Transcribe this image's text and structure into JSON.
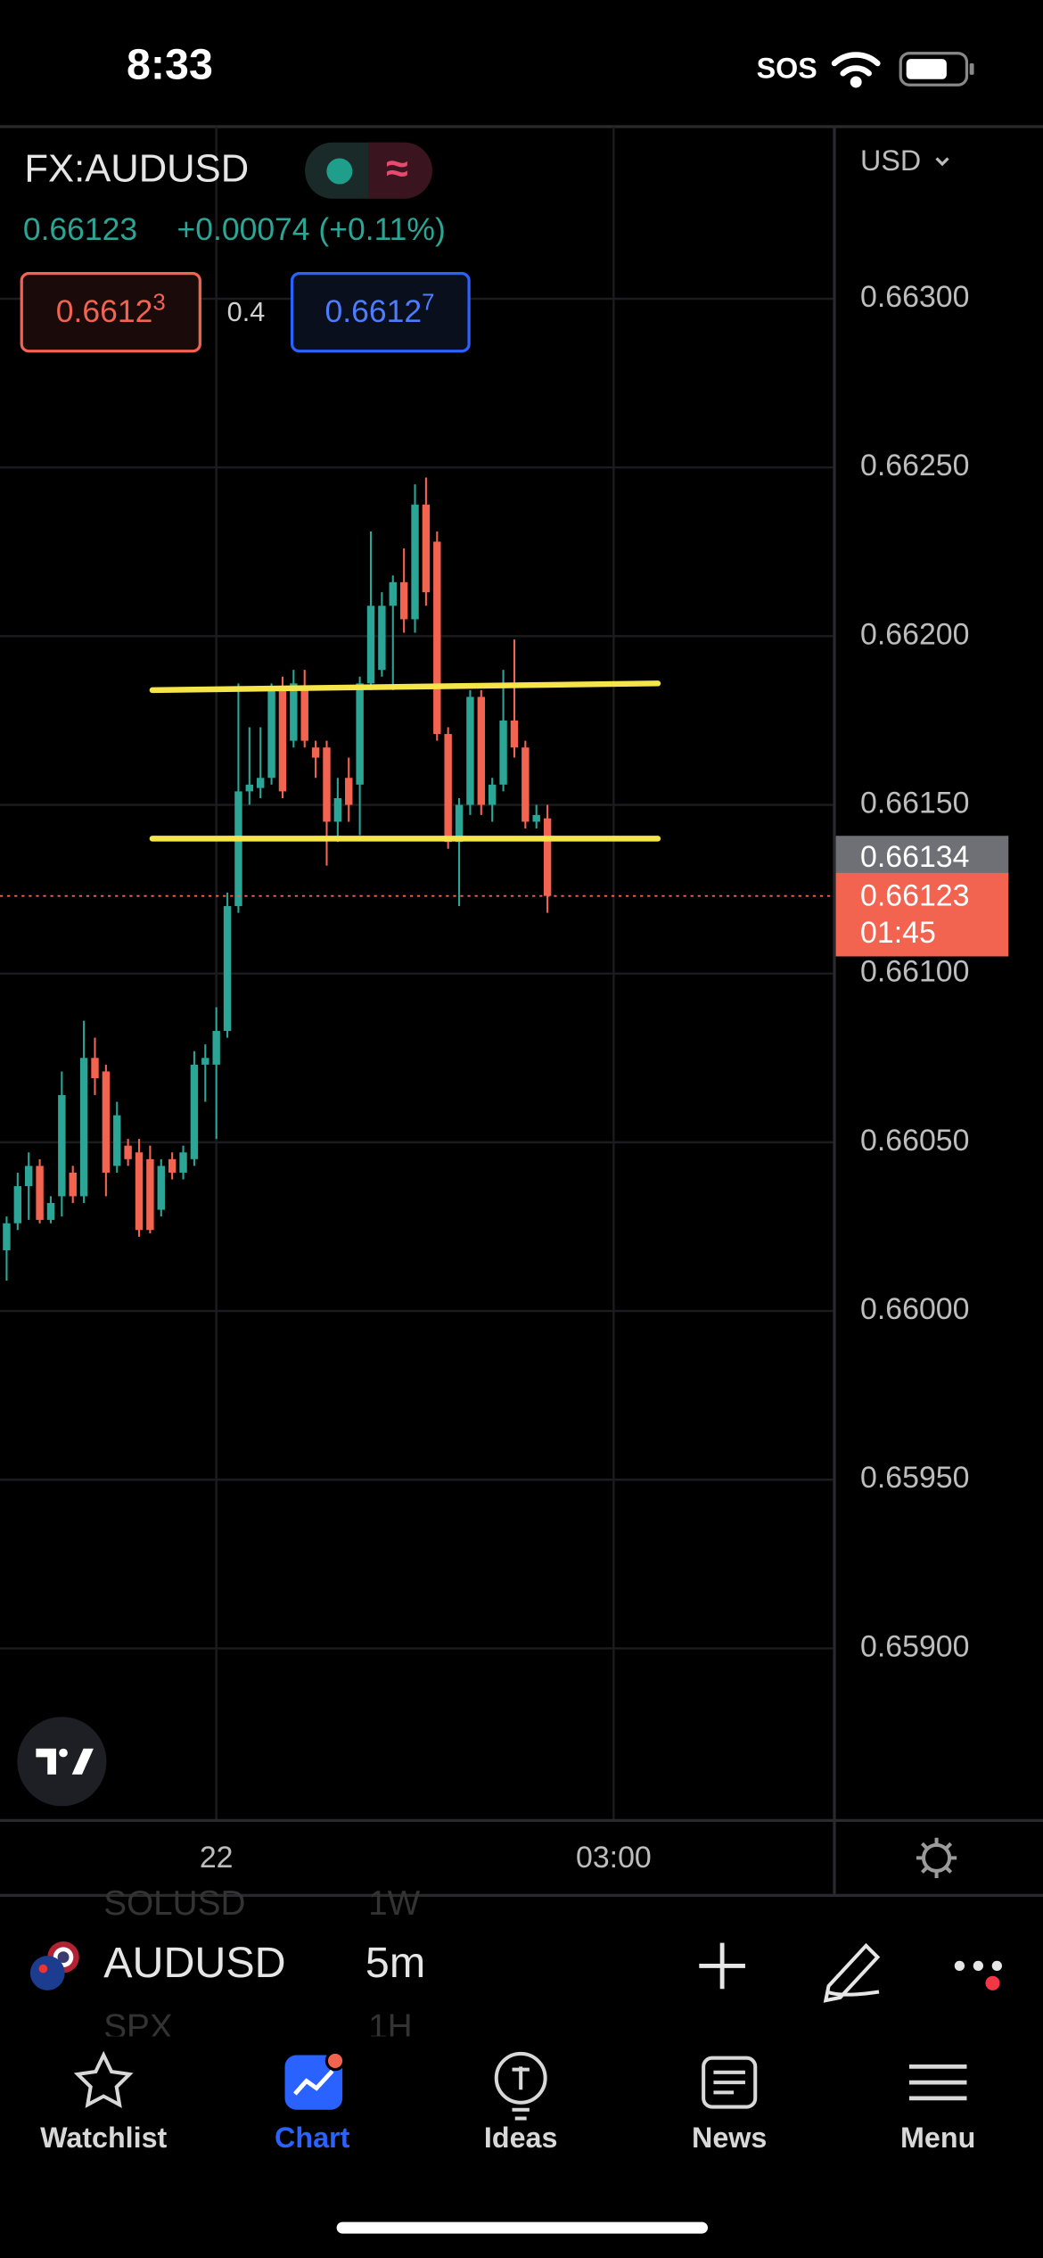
{
  "status_bar": {
    "time": "8:33",
    "signal": "SOS"
  },
  "header": {
    "symbol": "FX:AUDUSD",
    "price": "0.66123",
    "change": "+0.00074 (+0.11%)",
    "bid": {
      "main": "0.6612",
      "pip": "3"
    },
    "spread": "0.4",
    "ask": {
      "main": "0.6612",
      "pip": "7"
    },
    "currency": "USD"
  },
  "chart_data": {
    "type": "candlestick",
    "x": [
      -95,
      -90,
      -85,
      -80,
      -75,
      -70,
      -65,
      -60,
      -55,
      -50,
      -45,
      -40,
      -35,
      -30,
      -25,
      -20,
      -15,
      -10,
      -5,
      0,
      5,
      10,
      15,
      20,
      25,
      30,
      35,
      40,
      45,
      50,
      55,
      60,
      65,
      70,
      75,
      80,
      85,
      90,
      95,
      100,
      105,
      110,
      115,
      120,
      125,
      130,
      135,
      140,
      145,
      150
    ],
    "open": [
      0.66018,
      0.66026,
      0.66037,
      0.66043,
      0.66027,
      0.66034,
      0.66041,
      0.66034,
      0.66075,
      0.66071,
      0.66043,
      0.66049,
      0.66047,
      0.66045,
      0.6603,
      0.66045,
      0.66041,
      0.66045,
      0.66073,
      0.66073,
      0.66083,
      0.6612,
      0.66154,
      0.66155,
      0.66158,
      0.66184,
      0.66169,
      0.66184,
      0.66167,
      0.66167,
      0.66145,
      0.66158,
      0.66156,
      0.66186,
      0.6619,
      0.66209,
      0.66216,
      0.66205,
      0.66239,
      0.66228,
      0.66171,
      0.66139,
      0.6615,
      0.66182,
      0.6615,
      0.66156,
      0.66175,
      0.66167,
      0.66145,
      0.66146
    ],
    "high": [
      0.66028,
      0.66041,
      0.66047,
      0.66045,
      0.66034,
      0.66071,
      0.66043,
      0.66086,
      0.66081,
      0.66073,
      0.66062,
      0.66051,
      0.66051,
      0.66049,
      0.66045,
      0.66047,
      0.66049,
      0.66077,
      0.66079,
      0.6609,
      0.66124,
      0.66186,
      0.66173,
      0.66173,
      0.66186,
      0.66188,
      0.6619,
      0.6619,
      0.66169,
      0.66169,
      0.66158,
      0.66164,
      0.66188,
      0.66231,
      0.66213,
      0.66218,
      0.66226,
      0.66245,
      0.66247,
      0.66231,
      0.66173,
      0.66152,
      0.66184,
      0.66184,
      0.66158,
      0.6619,
      0.66199,
      0.66169,
      0.6615,
      0.6615
    ],
    "low": [
      0.66009,
      0.66024,
      0.66027,
      0.66026,
      0.66026,
      0.66028,
      0.66032,
      0.66032,
      0.66064,
      0.66034,
      0.66041,
      0.66043,
      0.66022,
      0.66023,
      0.66028,
      0.66039,
      0.66039,
      0.66043,
      0.66062,
      0.66051,
      0.66081,
      0.66118,
      0.6615,
      0.66152,
      0.66156,
      0.66152,
      0.66167,
      0.66167,
      0.66158,
      0.66132,
      0.66139,
      0.66145,
      0.66141,
      0.66184,
      0.66188,
      0.66184,
      0.66201,
      0.66201,
      0.66209,
      0.66169,
      0.66137,
      0.6612,
      0.66147,
      0.66147,
      0.66145,
      0.66154,
      0.66164,
      0.66143,
      0.66143,
      0.66118
    ],
    "close": [
      0.66026,
      0.66037,
      0.66043,
      0.66027,
      0.66032,
      0.66064,
      0.66034,
      0.66075,
      0.66069,
      0.66041,
      0.66058,
      0.66045,
      0.66024,
      0.66024,
      0.66043,
      0.66041,
      0.66047,
      0.66073,
      0.66075,
      0.66083,
      0.6612,
      0.66154,
      0.66156,
      0.66158,
      0.66184,
      0.66154,
      0.66186,
      0.66169,
      0.66164,
      0.66145,
      0.66152,
      0.6615,
      0.66186,
      0.66209,
      0.66209,
      0.66216,
      0.66205,
      0.66239,
      0.66213,
      0.66171,
      0.66139,
      0.6615,
      0.66182,
      0.6615,
      0.66156,
      0.66175,
      0.66167,
      0.66145,
      0.66147,
      0.66123
    ],
    "up_color": "#2aa596",
    "down_color": "#f26350",
    "xlim": [
      -98,
      280
    ],
    "xticks": [
      {
        "value": 0,
        "label": "22"
      },
      {
        "value": 180,
        "label": "03:00"
      }
    ],
    "ylim": [
      0.65849,
      0.66351
    ],
    "yticks": [
      {
        "value": 0.663,
        "label": "0.66300"
      },
      {
        "value": 0.6625,
        "label": "0.66250"
      },
      {
        "value": 0.662,
        "label": "0.66200"
      },
      {
        "value": 0.6615,
        "label": "0.66150"
      },
      {
        "value": 0.661,
        "label": "0.66100"
      },
      {
        "value": 0.6605,
        "label": "0.66050"
      },
      {
        "value": 0.66,
        "label": "0.66000"
      },
      {
        "value": 0.6595,
        "label": "0.65950"
      },
      {
        "value": 0.659,
        "label": "0.65900"
      }
    ],
    "grid": true,
    "lines": [
      {
        "color": "#f5e44a",
        "x": [
          -29,
          200
        ],
        "y": [
          0.66184,
          0.66186
        ]
      },
      {
        "color": "#f5e44a",
        "x": [
          -29,
          200
        ],
        "y": [
          0.6614,
          0.6614
        ]
      }
    ],
    "price_labels": [
      {
        "value": 0.66134,
        "label": "0.66134",
        "color": "#6e7075"
      }
    ],
    "last_price": {
      "value": 0.66123,
      "label": "0.66123",
      "countdown": "01:45",
      "color": "#f26350"
    }
  },
  "toolbar": {
    "symbol": "AUDUSD",
    "interval": "5m",
    "picker_above": [
      "SOLUSD",
      "1W"
    ],
    "picker_below": [
      "SPX",
      "1H"
    ]
  },
  "tab_bar": {
    "tabs": [
      "Watchlist",
      "Chart",
      "Ideas",
      "News",
      "Menu"
    ],
    "active": 1
  }
}
